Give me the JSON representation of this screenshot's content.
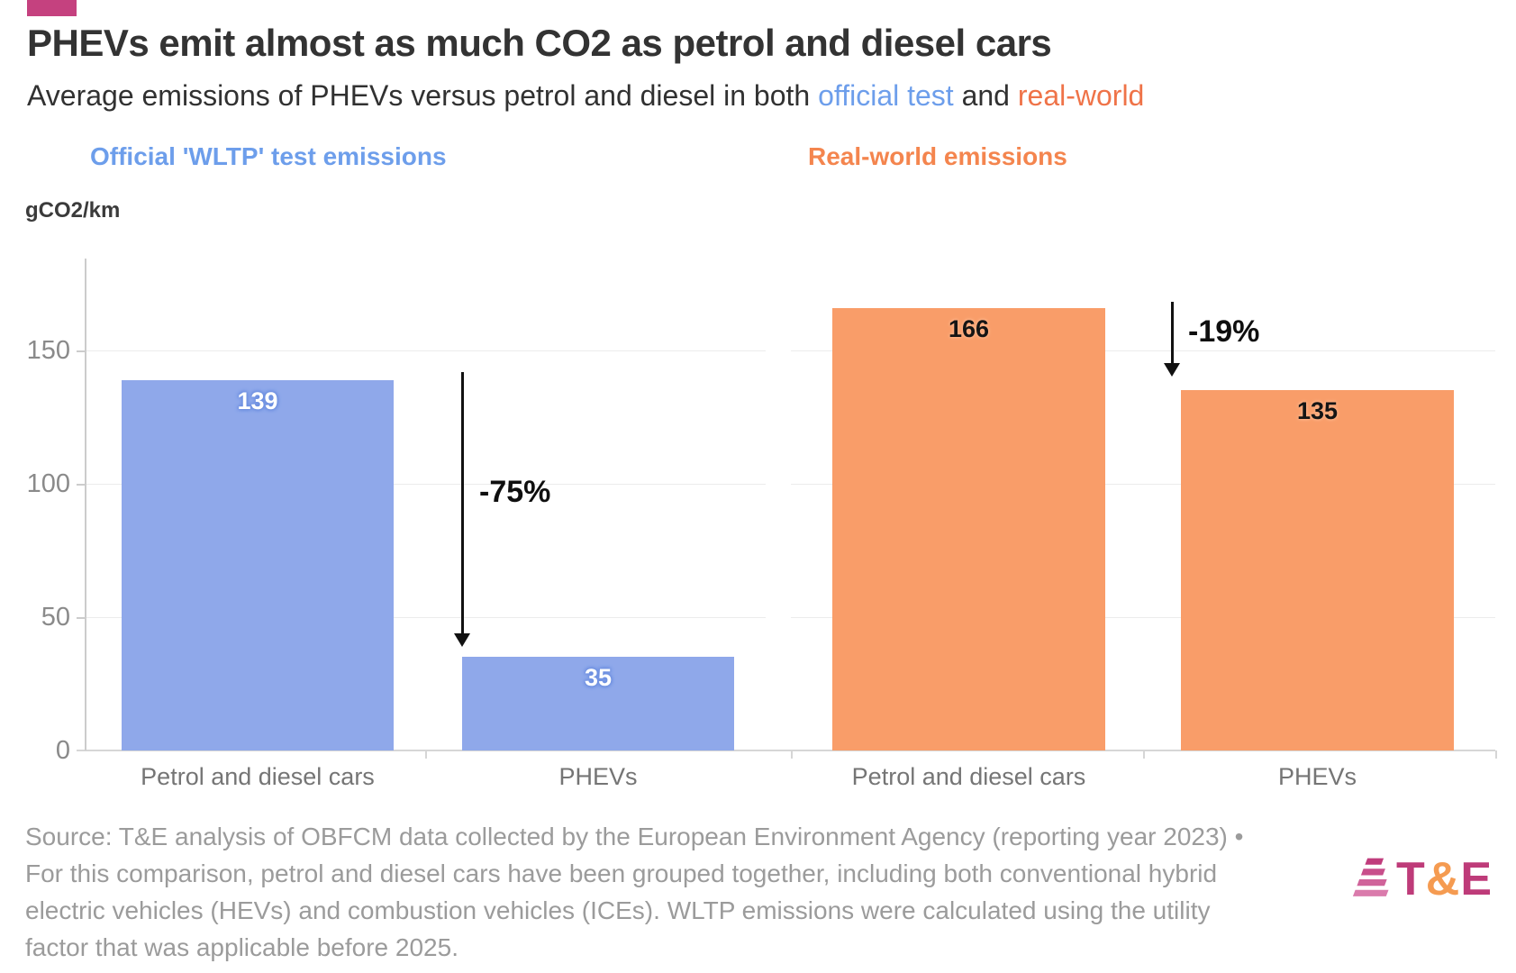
{
  "accent": {
    "bar_color": "#C5417F"
  },
  "header": {
    "title": "PHEVs emit almost as much CO2 as petrol and diesel cars",
    "subtitle_prefix": "Average emissions of PHEVs versus petrol and diesel in both ",
    "subtitle_official_test": "official test",
    "subtitle_middle": " and ",
    "subtitle_real_world": "real-world",
    "official_color": "#6D9EEB",
    "real_world_color": "#EF7348"
  },
  "chart_data": {
    "type": "bar",
    "title": "PHEVs emit almost as much CO2 as petrol and diesel cars",
    "unit_label": "gCO2/km",
    "categories": [
      "Petrol and diesel cars",
      "PHEVs"
    ],
    "y_axis": {
      "ticks": [
        0,
        50,
        100,
        150
      ],
      "max": 184,
      "grid": true
    },
    "panels": [
      {
        "title": "Official 'WLTP' test emissions",
        "title_color": "#6D9EEB",
        "bar_color": "#8FA8EA",
        "label_text_color": "#ffffff",
        "label_halo_color": "#6C8FE0",
        "values": [
          139,
          35
        ],
        "delta_label": "-75%"
      },
      {
        "title": "Real-world emissions",
        "title_color": "#F4854E",
        "bar_color": "#F99D69",
        "label_text_color": "#151515",
        "label_halo_color": "#FFB084",
        "values": [
          166,
          135
        ],
        "delta_label": "-19%"
      }
    ]
  },
  "footer": {
    "source_lines": [
      "Source: T&E analysis of OBFCM data collected by the European Environment Agency (reporting year 2023) •",
      "For this comparison, petrol and diesel cars have been grouped together, including both conventional hybrid",
      "electric vehicles (HEVs) and combustion vehicles (ICEs). WLTP emissions were calculated using the utility",
      "factor that was applicable before 2025."
    ],
    "logo": {
      "t": "T",
      "amp": "&",
      "e": "E",
      "t_color": "#BE3B79",
      "amp_color": "#F59B51",
      "e_color": "#BE3B79",
      "stripe_colors": [
        "#C03C7C",
        "#C84F8B",
        "#D0639A",
        "#DA7BAC"
      ]
    }
  }
}
